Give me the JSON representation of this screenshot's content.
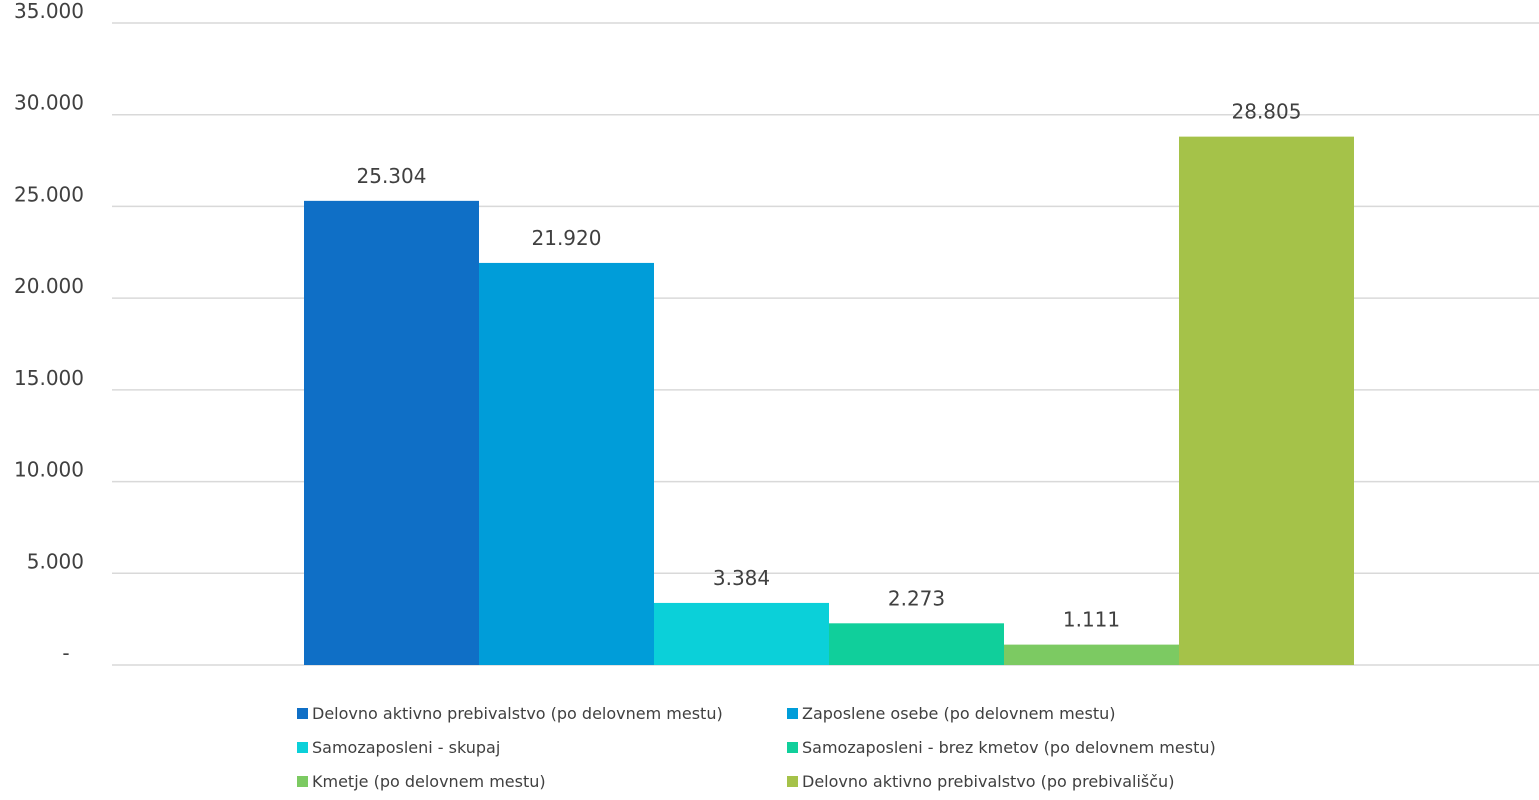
{
  "chart_data": {
    "type": "bar",
    "title": "",
    "xlabel": "",
    "ylabel": "",
    "ylim": [
      0,
      35000
    ],
    "yticks": [
      0,
      5000,
      10000,
      15000,
      20000,
      25000,
      30000,
      35000
    ],
    "ytick_labels": [
      "-",
      "5.000",
      "10.000",
      "15.000",
      "20.000",
      "25.000",
      "30.000",
      "35.000"
    ],
    "grid": true,
    "legend_position": "bottom",
    "series": [
      {
        "name": "Delovno aktivno prebivalstvo (po delovnem mestu)",
        "value": 25304,
        "label": "25.304",
        "color": "#0F6FC6"
      },
      {
        "name": "Zaposlene osebe (po delovnem mestu)",
        "value": 21920,
        "label": "21.920",
        "color": "#009DD9"
      },
      {
        "name": "Samozaposleni - skupaj",
        "value": 3384,
        "label": "3.384",
        "color": "#0BD0D9"
      },
      {
        "name": "Samozaposleni - brez kmetov (po delovnem mestu)",
        "value": 2273,
        "label": "2.273",
        "color": "#10CF9B"
      },
      {
        "name": "Kmetje (po delovnem mestu)",
        "value": 1111,
        "label": "1.111",
        "color": "#7CCA62"
      },
      {
        "name": "Delovno aktivno prebivalstvo (po prebivališču)",
        "value": 28805,
        "label": "28.805",
        "color": "#A5C249"
      }
    ]
  }
}
